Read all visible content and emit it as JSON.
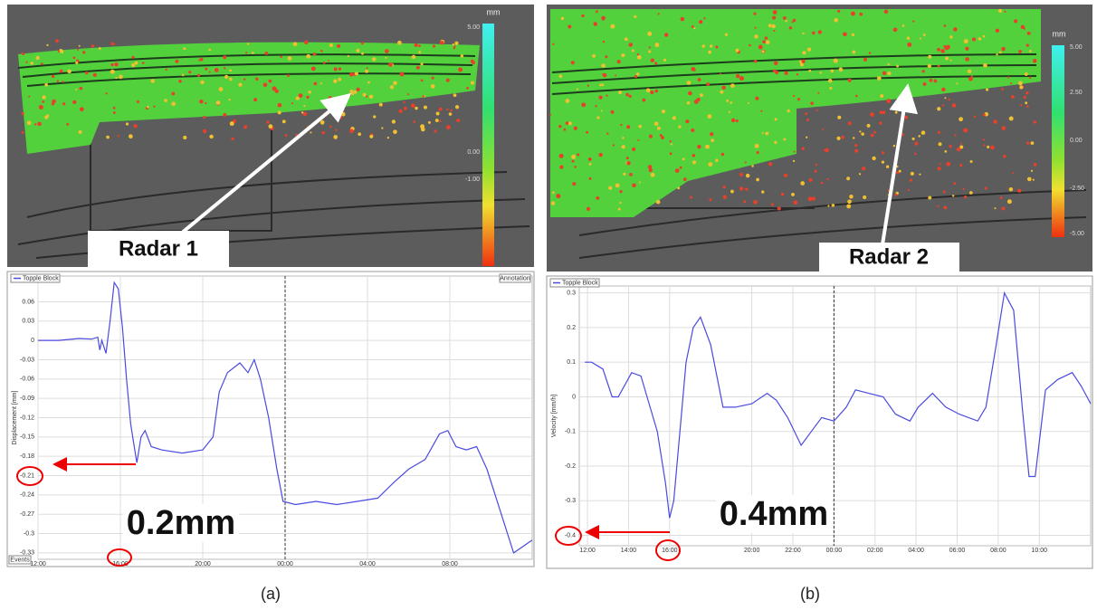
{
  "panels": [
    {
      "caption": "(a)",
      "map": {
        "label": "Radar 1",
        "unit": "mm",
        "colorbar_labels": [
          "5.00",
          "0.00",
          "-1.00"
        ]
      }
    },
    {
      "caption": "(b)",
      "map": {
        "label": "Radar 2",
        "unit": "mm",
        "colorbar_labels": [
          "5.00",
          "2.50",
          "0.00",
          "-2.50",
          "-5.00"
        ]
      }
    }
  ],
  "chart_data": [
    {
      "type": "line",
      "y_label": "Displacement [mm]",
      "legend": "upper left",
      "grid": true,
      "annotation_box": "Annotation",
      "events_box": "Events",
      "callout": "0.2mm",
      "event_line": 12,
      "x": [
        0,
        1,
        2,
        2.6,
        2.9,
        3.0,
        3.1,
        3.3,
        3.5,
        3.7,
        3.9,
        4.1,
        4.3,
        4.5,
        4.7,
        4.8,
        5.0,
        5.2,
        5.5,
        6,
        7,
        8,
        8.5,
        8.8,
        9.2,
        9.8,
        10.2,
        10.5,
        10.8,
        11.2,
        11.6,
        11.9,
        12.5,
        13.5,
        14.5,
        15.5,
        16.5,
        17.3,
        18,
        18.8,
        19.5,
        19.9,
        20.3,
        20.8,
        21.3,
        21.8,
        22.4,
        23.1,
        24
      ],
      "series": [
        {
          "name": "Topple Block",
          "color": "#4a4ae0",
          "values": [
            0,
            0,
            0.003,
            0.002,
            0.005,
            -0.015,
            0,
            -0.02,
            0.03,
            0.09,
            0.08,
            0.02,
            -0.06,
            -0.13,
            -0.17,
            -0.19,
            -0.15,
            -0.14,
            -0.165,
            -0.17,
            -0.175,
            -0.17,
            -0.15,
            -0.08,
            -0.05,
            -0.035,
            -0.05,
            -0.03,
            -0.06,
            -0.12,
            -0.2,
            -0.25,
            -0.255,
            -0.25,
            -0.255,
            -0.25,
            -0.245,
            -0.22,
            -0.2,
            -0.185,
            -0.145,
            -0.14,
            -0.165,
            -0.17,
            -0.165,
            -0.2,
            -0.26,
            -0.33,
            -0.31
          ]
        }
      ],
      "xlim": [
        0,
        24
      ],
      "ylim": [
        -0.34,
        0.1
      ],
      "xticks": [
        {
          "value": 0,
          "label": "12:00"
        },
        {
          "value": 4,
          "label": "16:00"
        },
        {
          "value": 8,
          "label": "20:00"
        },
        {
          "value": 12,
          "label": "00:00"
        },
        {
          "value": 16,
          "label": "04:00"
        },
        {
          "value": 20,
          "label": "08:00"
        }
      ],
      "yticks": [
        0.06,
        0.03,
        0,
        -0.03,
        -0.06,
        -0.09,
        -0.12,
        -0.15,
        -0.18,
        -0.21,
        -0.24,
        -0.27,
        -0.3,
        -0.33
      ]
    },
    {
      "type": "line",
      "y_label": "Velocity [mm/h]",
      "legend": "upper left",
      "grid": true,
      "callout": "0.4mm",
      "event_line": 12,
      "x": [
        -0.13,
        0.2,
        0.75,
        1.2,
        1.5,
        2.15,
        2.6,
        2.9,
        3.4,
        3.8,
        4.0,
        4.2,
        4.5,
        4.8,
        5.15,
        5.5,
        6.0,
        6.6,
        7.2,
        8.0,
        8.75,
        9.2,
        9.75,
        10.4,
        10.9,
        11.4,
        12,
        12.6,
        13.05,
        13.7,
        14.4,
        15,
        15.7,
        16.1,
        16.8,
        17.45,
        18.1,
        19,
        19.4,
        19.9,
        20.3,
        20.75,
        21.2,
        21.5,
        21.8,
        22.3,
        22.9,
        23.6,
        24.05,
        24.5
      ],
      "series": [
        {
          "name": "Topple Block",
          "color": "#4a4ae0",
          "values": [
            0.1,
            0.1,
            0.08,
            0,
            0,
            0.07,
            0.06,
            0,
            -0.1,
            -0.25,
            -0.35,
            -0.3,
            -0.1,
            0.1,
            0.2,
            0.23,
            0.15,
            -0.03,
            -0.03,
            -0.02,
            0.01,
            -0.01,
            -0.06,
            -0.14,
            -0.1,
            -0.06,
            -0.07,
            -0.03,
            0.02,
            0.01,
            0,
            -0.05,
            -0.07,
            -0.03,
            0.01,
            -0.03,
            -0.05,
            -0.07,
            -0.03,
            0.15,
            0.3,
            0.25,
            -0.05,
            -0.23,
            -0.23,
            0.02,
            0.05,
            0.07,
            0.03,
            -0.02
          ]
        }
      ],
      "xlim": [
        -0.4,
        24.5
      ],
      "ylim": [
        -0.43,
        0.32
      ],
      "xticks": [
        {
          "value": 0,
          "label": "12:00"
        },
        {
          "value": 2,
          "label": "14:00"
        },
        {
          "value": 4,
          "label": "16:00"
        },
        {
          "value": 8,
          "label": "20:00"
        },
        {
          "value": 10,
          "label": "22:00"
        },
        {
          "value": 12,
          "label": "00:00"
        },
        {
          "value": 14,
          "label": "02:00"
        },
        {
          "value": 16,
          "label": "04:00"
        },
        {
          "value": 18,
          "label": "06:00"
        },
        {
          "value": 20,
          "label": "08:00"
        },
        {
          "value": 22,
          "label": "10:00"
        }
      ],
      "yticks": [
        0.3,
        0.2,
        0.1,
        0,
        -0.1,
        -0.2,
        -0.3,
        -0.4
      ]
    }
  ]
}
